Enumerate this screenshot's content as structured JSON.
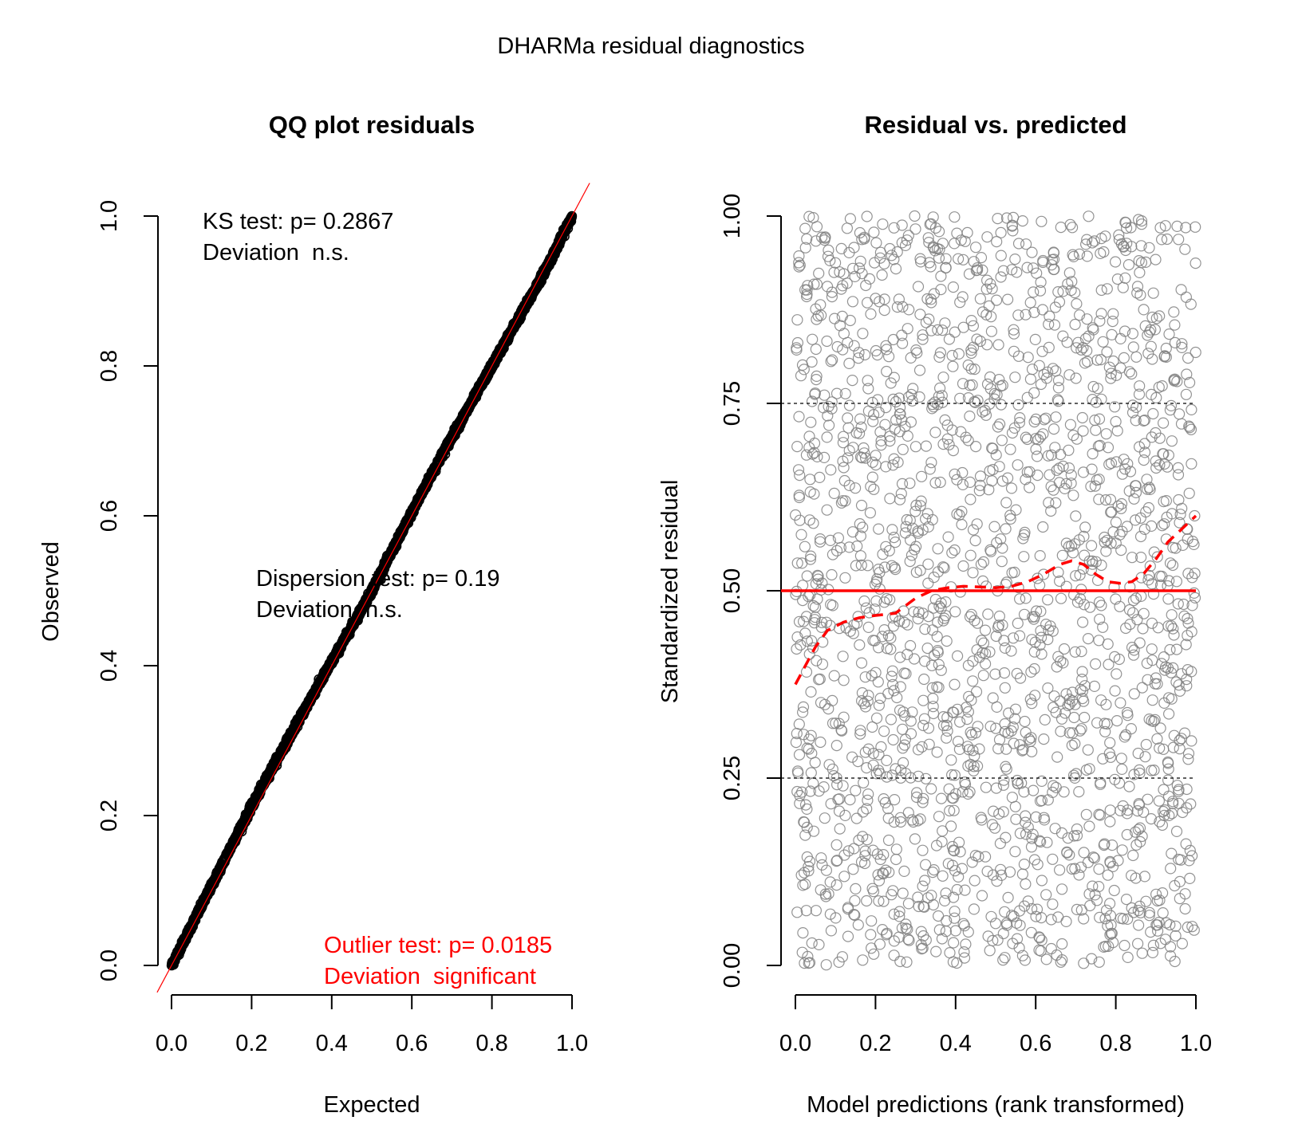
{
  "figure": {
    "title": "DHARMa residual diagnostics"
  },
  "chart_data": [
    {
      "type": "scatter",
      "title": "QQ plot residuals",
      "xlabel": "Expected",
      "ylabel": "Observed",
      "xlim": [
        0,
        1
      ],
      "ylim": [
        0,
        1
      ],
      "xticks": [
        "0.0",
        "0.2",
        "0.4",
        "0.6",
        "0.8",
        "1.0"
      ],
      "yticks": [
        "0.0",
        "0.2",
        "0.4",
        "0.6",
        "0.8",
        "1.0"
      ],
      "xtick_values": [
        0,
        0.2,
        0.4,
        0.6,
        0.8,
        1.0
      ],
      "ytick_values": [
        0,
        0.2,
        0.4,
        0.6,
        0.8,
        1.0
      ],
      "reference_line": {
        "slope": 1,
        "intercept": 0,
        "color": "#ff0000"
      },
      "points_color": "#000000",
      "series": [
        {
          "x": [
            0.0,
            0.05,
            0.1,
            0.15,
            0.2,
            0.25,
            0.3,
            0.35,
            0.4,
            0.45,
            0.5,
            0.55,
            0.6,
            0.65,
            0.7,
            0.75,
            0.8,
            0.85,
            0.9,
            0.95,
            1.0
          ],
          "values": [
            0.0,
            0.053,
            0.106,
            0.16,
            0.212,
            0.262,
            0.31,
            0.358,
            0.405,
            0.452,
            0.5,
            0.552,
            0.604,
            0.656,
            0.705,
            0.752,
            0.8,
            0.848,
            0.895,
            0.945,
            1.0
          ]
        }
      ],
      "annotations": {
        "ks": {
          "line1": "KS test: p= 0.2867",
          "line2": "Deviation  n.s.",
          "color": "#000000"
        },
        "dispersion": {
          "line1": "Dispersion test: p= 0.19",
          "line2": "Deviation  n.s.",
          "color": "#000000"
        },
        "outlier": {
          "line1": "Outlier test: p= 0.0185",
          "line2": "Deviation  significant",
          "color": "#ff0000"
        }
      }
    },
    {
      "type": "scatter",
      "title": "Residual vs. predicted",
      "xlabel": "Model predictions (rank transformed)",
      "ylabel": "Standardized residual",
      "xlim": [
        0,
        1
      ],
      "ylim": [
        0,
        1
      ],
      "xticks": [
        "0.0",
        "0.2",
        "0.4",
        "0.6",
        "0.8",
        "1.0"
      ],
      "yticks": [
        "0.00",
        "0.25",
        "0.50",
        "0.75",
        "1.00"
      ],
      "xtick_values": [
        0,
        0.2,
        0.4,
        0.6,
        0.8,
        1.0
      ],
      "ytick_values": [
        0,
        0.25,
        0.5,
        0.75,
        1.0
      ],
      "points": "approximately 2000 open circles, uniformly scattered over [0,1] x [0,1]",
      "point_color": "#808080",
      "hlines": [
        {
          "y": 0.25,
          "style": "dotted",
          "color": "#000000"
        },
        {
          "y": 0.5,
          "style": "solid",
          "color": "#ff0000"
        },
        {
          "y": 0.75,
          "style": "dotted",
          "color": "#000000"
        }
      ],
      "smooth_line": {
        "style": "dashed",
        "color": "#ff0000",
        "x": [
          0.0,
          0.02,
          0.05,
          0.08,
          0.12,
          0.16,
          0.2,
          0.25,
          0.3,
          0.34,
          0.38,
          0.42,
          0.46,
          0.5,
          0.54,
          0.58,
          0.62,
          0.66,
          0.69,
          0.72,
          0.75,
          0.78,
          0.81,
          0.84,
          0.87,
          0.9,
          0.93,
          0.96,
          1.0
        ],
        "y": [
          0.375,
          0.395,
          0.425,
          0.447,
          0.458,
          0.464,
          0.467,
          0.47,
          0.49,
          0.5,
          0.504,
          0.506,
          0.505,
          0.504,
          0.506,
          0.512,
          0.522,
          0.535,
          0.54,
          0.535,
          0.522,
          0.512,
          0.51,
          0.512,
          0.523,
          0.542,
          0.565,
          0.58,
          0.6
        ]
      }
    }
  ]
}
